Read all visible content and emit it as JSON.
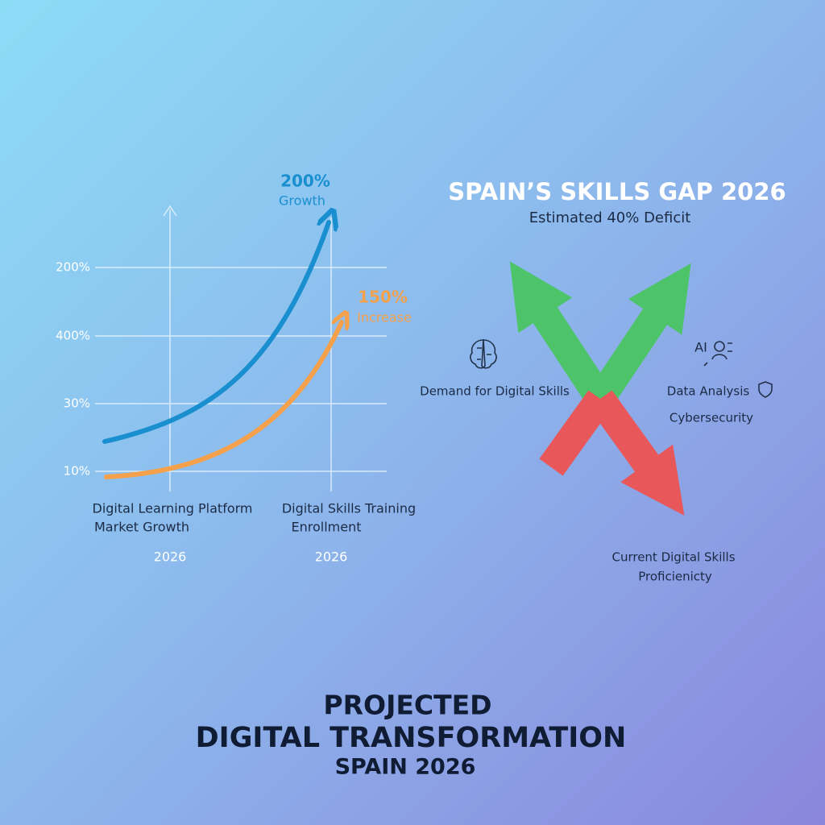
{
  "left_panel": {
    "y_labels": [
      "200%",
      "400%",
      "30%",
      "10%"
    ],
    "callouts": [
      {
        "value": "200%",
        "label": "Growth"
      },
      {
        "value": "150%",
        "label": "Increase"
      }
    ],
    "columns": [
      {
        "lines": [
          "Digital Learning Platform",
          "Market Growth"
        ],
        "year": "2026"
      },
      {
        "lines": [
          "Digital Skills Training",
          "Enrollment"
        ],
        "year": "2026"
      }
    ]
  },
  "right_panel": {
    "title": "SPAIN’S SKILLS GAP 2026",
    "subtitle": "Estimated 40% Deficit",
    "demand": "Demand for Digital Skills",
    "ai": "AI",
    "data_analysis": "Data Analysis",
    "cybersecurity": "Cybersecurity",
    "current": [
      "Current Digital Skills",
      "Proficienicty"
    ]
  },
  "footer": {
    "lines": [
      "PROJECTED",
      "DIGITAL TRANSFORMATION",
      "SPAIN 2026"
    ]
  }
}
